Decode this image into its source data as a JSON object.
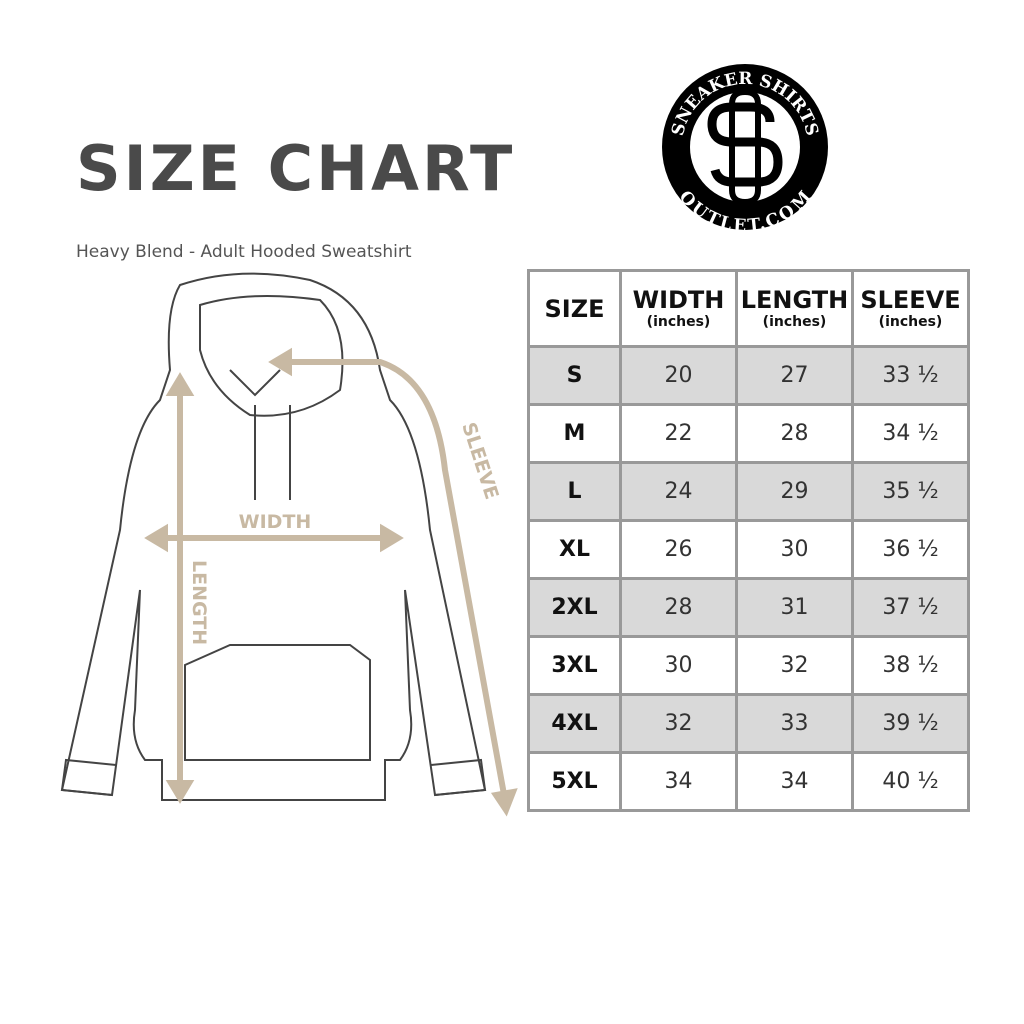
{
  "header": {
    "title": "SIZE CHART",
    "subtitle": "Heavy Blend - Adult Hooded Sweatshirt"
  },
  "logo": {
    "text_top": "SNEAKER SHIRTS",
    "text_bottom": "OUTLET.COM",
    "monogram": "SS"
  },
  "diagram": {
    "labels": {
      "width": "WIDTH",
      "length": "LENGTH",
      "sleeve": "SLEEVE"
    },
    "accent_color": "#c8b9a3"
  },
  "table": {
    "columns": [
      {
        "label": "SIZE",
        "unit": ""
      },
      {
        "label": "WIDTH",
        "unit": "(inches)"
      },
      {
        "label": "LENGTH",
        "unit": "(inches)"
      },
      {
        "label": "SLEEVE",
        "unit": "(inches)"
      }
    ],
    "rows": [
      [
        "S",
        "20",
        "27",
        "33 ½"
      ],
      [
        "M",
        "22",
        "28",
        "34 ½"
      ],
      [
        "L",
        "24",
        "29",
        "35 ½"
      ],
      [
        "XL",
        "26",
        "30",
        "36 ½"
      ],
      [
        "2XL",
        "28",
        "31",
        "37 ½"
      ],
      [
        "3XL",
        "30",
        "32",
        "38 ½"
      ],
      [
        "4XL",
        "32",
        "33",
        "39 ½"
      ],
      [
        "5XL",
        "34",
        "34",
        "40 ½"
      ]
    ]
  }
}
